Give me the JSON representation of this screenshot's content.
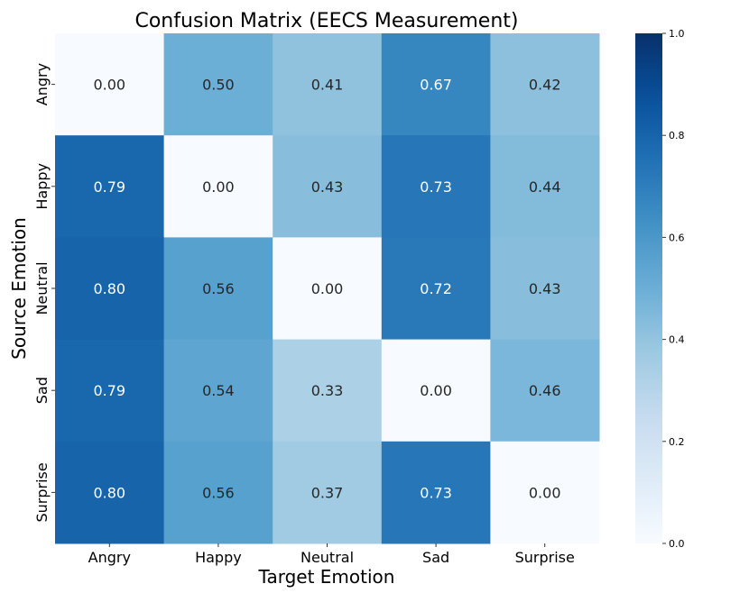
{
  "chart_data": {
    "type": "heatmap",
    "title": "Confusion Matrix (EECS Measurement)",
    "xlabel": "Target Emotion",
    "ylabel": "Source Emotion",
    "x_categories": [
      "Angry",
      "Happy",
      "Neutral",
      "Sad",
      "Surprise"
    ],
    "y_categories": [
      "Angry",
      "Happy",
      "Neutral",
      "Sad",
      "Surprise"
    ],
    "values": [
      [
        0.0,
        0.5,
        0.41,
        0.67,
        0.42
      ],
      [
        0.79,
        0.0,
        0.43,
        0.73,
        0.44
      ],
      [
        0.8,
        0.56,
        0.0,
        0.72,
        0.43
      ],
      [
        0.79,
        0.54,
        0.33,
        0.0,
        0.46
      ],
      [
        0.8,
        0.56,
        0.37,
        0.73,
        0.0
      ]
    ],
    "colormap": "Blues",
    "vmin": 0.0,
    "vmax": 1.0,
    "colorbar_ticks": [
      "0.0",
      "0.2",
      "0.4",
      "0.6",
      "0.8",
      "1.0"
    ],
    "annotation_format": "0.00"
  }
}
